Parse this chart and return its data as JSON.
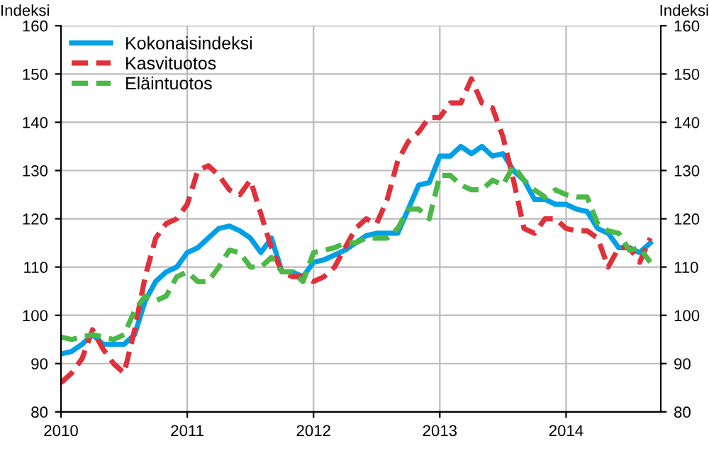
{
  "chart_data": {
    "type": "line",
    "ylabel": "Indeksi",
    "y2label": "Indeksi",
    "x": [
      "2010-01",
      "2010-02",
      "2010-03",
      "2010-04",
      "2010-05",
      "2010-06",
      "2010-07",
      "2010-08",
      "2010-09",
      "2010-10",
      "2010-11",
      "2010-12",
      "2011-01",
      "2011-02",
      "2011-03",
      "2011-04",
      "2011-05",
      "2011-06",
      "2011-07",
      "2011-08",
      "2011-09",
      "2011-10",
      "2011-11",
      "2011-12",
      "2012-01",
      "2012-02",
      "2012-03",
      "2012-04",
      "2012-05",
      "2012-06",
      "2012-07",
      "2012-08",
      "2012-09",
      "2012-10",
      "2012-11",
      "2012-12",
      "2013-01",
      "2013-02",
      "2013-03",
      "2013-04",
      "2013-05",
      "2013-06",
      "2013-07",
      "2013-08",
      "2013-09",
      "2013-10",
      "2013-11",
      "2013-12",
      "2014-01",
      "2014-02",
      "2014-03",
      "2014-04",
      "2014-05",
      "2014-06",
      "2014-07",
      "2014-08",
      "2014-09"
    ],
    "series": [
      {
        "name": "Kokonaisindeksi",
        "color": "#00a0e6",
        "line_style": "solid",
        "values": [
          92,
          92.5,
          94,
          96,
          94,
          94,
          94,
          96,
          103,
          107,
          109,
          110,
          113,
          114,
          116,
          118,
          118.5,
          117.5,
          116,
          113,
          116,
          109,
          109,
          108,
          111,
          111.5,
          112.5,
          113.5,
          115,
          116.5,
          117,
          117,
          117,
          122,
          127,
          127.5,
          133,
          133,
          135,
          133.5,
          135,
          133,
          133.5,
          130,
          128,
          124,
          124,
          123,
          123,
          122,
          121.5,
          118,
          117,
          114,
          114,
          113,
          115
        ]
      },
      {
        "name": "Kasvituotos",
        "color": "#e0303a",
        "line_style": "dashed",
        "values": [
          86,
          88,
          91,
          97,
          93,
          90,
          88,
          97,
          108,
          116,
          119,
          120,
          123,
          130,
          131,
          129,
          126,
          125,
          128,
          121,
          114,
          109,
          108,
          108,
          107,
          108,
          110,
          114,
          118,
          120,
          119,
          124,
          132,
          136,
          138,
          141,
          141,
          144,
          144,
          149,
          144,
          143,
          137,
          128,
          118,
          117,
          120,
          120,
          118,
          117.5,
          117.5,
          116,
          110,
          114,
          114,
          111,
          116
        ]
      },
      {
        "name": "Eläintuotos",
        "color": "#4cb847",
        "line_style": "dashed",
        "values": [
          95.5,
          95,
          95.5,
          96,
          95.5,
          95,
          96,
          101,
          104,
          103,
          104,
          108,
          109,
          107,
          107,
          110,
          113.5,
          113,
          110,
          110,
          112,
          109,
          109,
          107,
          113,
          113.5,
          114,
          115,
          115,
          116,
          116,
          116,
          118,
          122,
          122,
          120,
          129,
          129,
          127,
          126,
          126,
          128,
          127,
          131,
          128,
          126,
          124.5,
          126,
          125,
          124.5,
          124.5,
          119,
          117.5,
          117,
          113.5,
          114,
          111
        ]
      }
    ],
    "xlim": [
      "2010-01",
      "2014-10"
    ],
    "xticks": [
      {
        "value": "2010-01",
        "label": "2010"
      },
      {
        "value": "2011-01",
        "label": "2011"
      },
      {
        "value": "2012-01",
        "label": "2012"
      },
      {
        "value": "2013-01",
        "label": "2013"
      },
      {
        "value": "2014-01",
        "label": "2014"
      }
    ],
    "ylim": [
      80,
      160
    ],
    "yticks": [
      80,
      90,
      100,
      110,
      120,
      130,
      140,
      150,
      160
    ],
    "y2lim": [
      80,
      160
    ],
    "y2ticks": [
      80,
      90,
      100,
      110,
      120,
      130,
      140,
      150,
      160
    ],
    "grid": true,
    "legend": "top left",
    "marker": "none"
  }
}
